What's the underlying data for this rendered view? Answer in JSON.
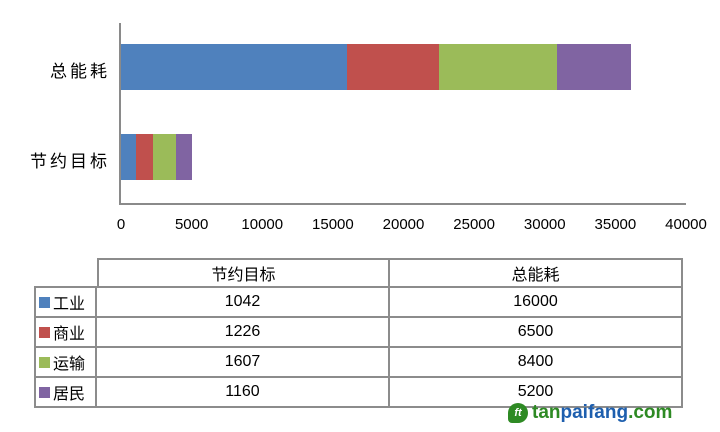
{
  "chart_data": {
    "type": "bar",
    "orientation": "horizontal",
    "stacked": true,
    "title": "",
    "xlabel": "",
    "ylabel": "",
    "categories": [
      "总能耗",
      "节约目标"
    ],
    "series": [
      {
        "name": "工业",
        "key": "industry",
        "color": "#4F81BD",
        "values": [
          16000,
          1042
        ]
      },
      {
        "name": "商业",
        "key": "commerce",
        "color": "#C0504D",
        "values": [
          6500,
          1226
        ]
      },
      {
        "name": "运输",
        "key": "transport",
        "color": "#9BBB59",
        "values": [
          8400,
          1607
        ]
      },
      {
        "name": "居民",
        "key": "residents",
        "color": "#8064A2",
        "values": [
          5200,
          1160
        ]
      }
    ],
    "xlim": [
      0,
      40000
    ],
    "x_ticks": [
      0,
      5000,
      10000,
      15000,
      20000,
      25000,
      30000,
      35000,
      40000
    ],
    "grid": false,
    "legend_position": "data-table-below"
  },
  "table": {
    "col_headers": [
      "节约目标",
      "总能耗"
    ],
    "rows": [
      {
        "label": "工业",
        "key": "industry",
        "swatch_color": "#4F81BD",
        "values": [
          "1042",
          "16000"
        ]
      },
      {
        "label": "商业",
        "key": "commerce",
        "swatch_color": "#C0504D",
        "values": [
          "1226",
          "6500"
        ]
      },
      {
        "label": "运输",
        "key": "transport",
        "swatch_color": "#9BBB59",
        "values": [
          "1607",
          "8400"
        ]
      },
      {
        "label": "居民",
        "key": "residents",
        "swatch_color": "#8064A2",
        "values": [
          "1160",
          "5200"
        ]
      }
    ]
  },
  "watermark": {
    "icon_glyph": "ft",
    "parts": [
      {
        "text": "tan",
        "color": "#2e8a24"
      },
      {
        "text": "paifang",
        "color": "#1e5fae"
      },
      {
        "text": ".com",
        "color": "#2e8a24"
      }
    ]
  },
  "layout_colors": {
    "axis_line": "#8a8a8a",
    "table_border": "#8c8c8c",
    "background": "#ffffff"
  }
}
